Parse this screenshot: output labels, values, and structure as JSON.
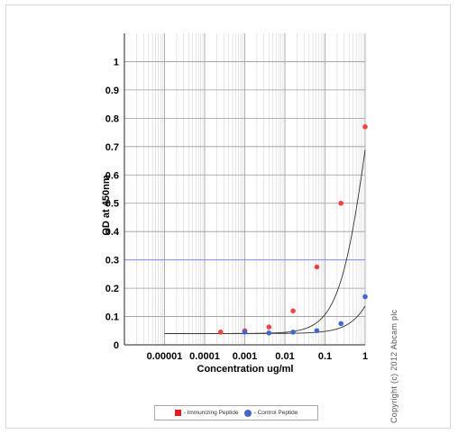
{
  "chart_data": {
    "type": "scatter",
    "xlabel": "Concentration ug/ml",
    "ylabel": "OD at 450nm",
    "x_scale": "log",
    "xlim": [
      1e-06,
      1
    ],
    "ylim": [
      0,
      1.1
    ],
    "x_ticks": [
      {
        "value": 1e-05,
        "label": "0.00001"
      },
      {
        "value": 0.0001,
        "label": "0.0001"
      },
      {
        "value": 0.001,
        "label": "0.001"
      },
      {
        "value": 0.01,
        "label": "0.01"
      },
      {
        "value": 0.1,
        "label": "0.1"
      },
      {
        "value": 1,
        "label": "1"
      }
    ],
    "y_ticks": [
      {
        "value": 0,
        "label": "0"
      },
      {
        "value": 0.1,
        "label": "0.1"
      },
      {
        "value": 0.2,
        "label": "0.2"
      },
      {
        "value": 0.3,
        "label": "0.3"
      },
      {
        "value": 0.4,
        "label": "0.4"
      },
      {
        "value": 0.5,
        "label": "0.5"
      },
      {
        "value": 0.6,
        "label": "0.6"
      },
      {
        "value": 0.7,
        "label": "0.7"
      },
      {
        "value": 0.8,
        "label": "0.8"
      },
      {
        "value": 0.9,
        "label": "0.9"
      },
      {
        "value": 1,
        "label": "1"
      }
    ],
    "grid": true,
    "reference_line": {
      "y": 0.3,
      "color": "#8a8aee"
    },
    "series": [
      {
        "name": "- Immunizing Peptide",
        "color": "#ee4444",
        "marker": "square",
        "points": [
          [
            0.00025,
            0.045
          ],
          [
            0.001,
            0.05
          ],
          [
            0.004,
            0.063
          ],
          [
            0.016,
            0.12
          ],
          [
            0.0625,
            0.275
          ],
          [
            0.25,
            0.5
          ],
          [
            1,
            0.77
          ]
        ]
      },
      {
        "name": "- Control Peptide",
        "color": "#4466cc",
        "marker": "circle",
        "points": [
          [
            0.001,
            0.045
          ],
          [
            0.004,
            0.042
          ],
          [
            0.016,
            0.045
          ],
          [
            0.0625,
            0.05
          ],
          [
            0.25,
            0.075
          ],
          [
            1,
            0.17
          ]
        ]
      }
    ],
    "fit_curves": [
      {
        "series": "- Immunizing Peptide",
        "bottom": 0.04,
        "top": 1.5,
        "ec50": 1.2,
        "hill": 1.22
      },
      {
        "series": "- Control Peptide",
        "bottom": 0.04,
        "top": 1.2,
        "ec50": 8.0,
        "hill": 1.15
      }
    ],
    "fit_x_start": 1e-05
  },
  "copyright": "Copyright (c) 2012 Abcam plc"
}
